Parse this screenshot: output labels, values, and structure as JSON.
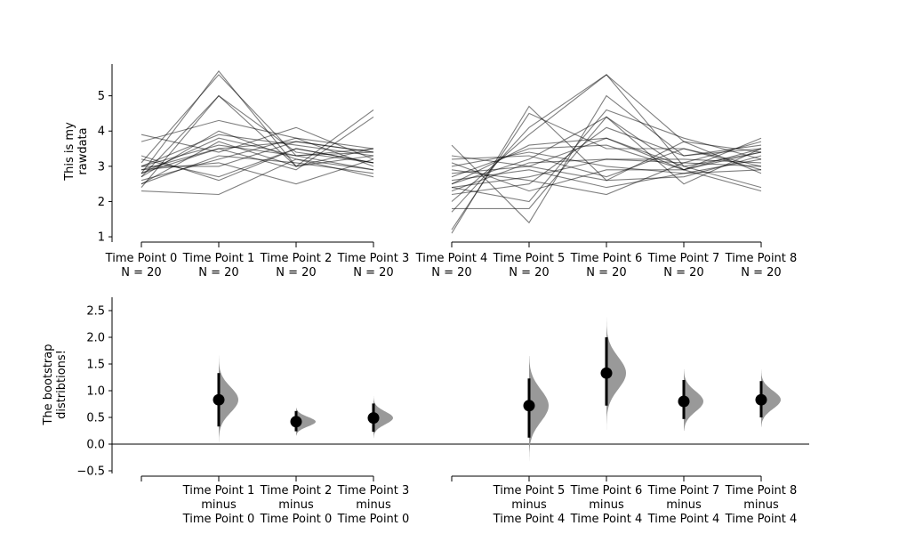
{
  "chart_data": [
    {
      "type": "line",
      "ylabel": "This is my\nrawdata",
      "ylim": [
        0.85,
        5.9
      ],
      "yticks": [
        1,
        2,
        3,
        4,
        5
      ],
      "groups": [
        {
          "x_labels": [
            "Time Point 0\nN = 20",
            "Time Point 1\nN = 20",
            "Time Point 2\nN = 20",
            "Time Point 3\nN = 20"
          ],
          "lines": [
            [
              2.8,
              5.7,
              3.0,
              3.3
            ],
            [
              3.1,
              5.6,
              3.3,
              3.4
            ],
            [
              2.7,
              5.0,
              3.0,
              3.5
            ],
            [
              2.4,
              5.0,
              3.4,
              3.1
            ],
            [
              3.7,
              4.3,
              3.8,
              3.5
            ],
            [
              3.9,
              3.4,
              4.1,
              3.2
            ],
            [
              2.5,
              3.7,
              3.0,
              4.6
            ],
            [
              2.9,
              3.5,
              2.9,
              4.4
            ],
            [
              3.0,
              3.9,
              3.6,
              3.3
            ],
            [
              2.8,
              3.5,
              3.7,
              3.4
            ],
            [
              3.0,
              3.6,
              3.3,
              2.9
            ],
            [
              2.6,
              3.2,
              3.8,
              3.0
            ],
            [
              2.9,
              3.1,
              2.5,
              3.2
            ],
            [
              3.2,
              2.7,
              3.5,
              3.1
            ],
            [
              2.3,
              2.2,
              3.2,
              2.7
            ],
            [
              3.3,
              2.6,
              3.5,
              3.1
            ],
            [
              2.8,
              3.8,
              3.3,
              3.5
            ],
            [
              2.7,
              4.0,
              3.2,
              2.9
            ],
            [
              2.5,
              3.3,
              3.1,
              2.8
            ],
            [
              3.0,
              3.0,
              3.7,
              3.4
            ]
          ]
        },
        {
          "x_labels": [
            "Time Point 4\nN = 20",
            "Time Point 5\nN = 20",
            "Time Point 6\nN = 20",
            "Time Point 7\nN = 20",
            "Time Point 8\nN = 20"
          ],
          "lines": [
            [
              1.1,
              4.7,
              2.6,
              3.7,
              3.4
            ],
            [
              1.2,
              4.5,
              3.5,
              3.5,
              3.0
            ],
            [
              1.7,
              4.1,
              5.6,
              3.0,
              3.4
            ],
            [
              2.0,
              3.9,
              5.6,
              3.7,
              2.8
            ],
            [
              3.6,
              1.4,
              5.0,
              3.3,
              3.6
            ],
            [
              2.4,
              2.0,
              4.6,
              3.8,
              3.2
            ],
            [
              1.8,
              1.8,
              4.4,
              2.9,
              3.8
            ],
            [
              2.5,
              3.2,
              4.4,
              2.5,
              3.5
            ],
            [
              3.3,
              3.0,
              3.8,
              3.0,
              2.4
            ],
            [
              2.7,
              3.5,
              3.6,
              2.9,
              2.3
            ],
            [
              2.3,
              3.1,
              3.2,
              3.1,
              3.7
            ],
            [
              3.1,
              2.3,
              2.9,
              2.9,
              3.5
            ],
            [
              2.9,
              2.6,
              2.2,
              3.1,
              3.0
            ],
            [
              3.2,
              3.3,
              2.7,
              3.5,
              2.9
            ],
            [
              2.6,
              2.9,
              2.4,
              2.8,
              3.2
            ],
            [
              2.5,
              3.6,
              3.8,
              2.9,
              3.4
            ],
            [
              2.4,
              2.7,
              3.2,
              3.2,
              3.1
            ],
            [
              2.8,
              3.0,
              2.6,
              2.7,
              3.3
            ],
            [
              3.0,
              3.4,
              3.0,
              2.8,
              2.9
            ],
            [
              2.2,
              2.5,
              4.1,
              3.3,
              3.5
            ]
          ]
        }
      ]
    },
    {
      "type": "violin-half",
      "ylabel": "The bootstrap\ndistribtions!",
      "ylim": [
        -0.55,
        2.75
      ],
      "yticks": [
        -0.5,
        0.0,
        0.5,
        1.0,
        1.5,
        2.0,
        2.5
      ],
      "ytick_labels": [
        "−0.5",
        "0.0",
        "0.5",
        "1.0",
        "1.5",
        "2.0",
        "2.5"
      ],
      "groups": [
        {
          "x_labels": [
            "",
            "Time Point 1\nminus\nTime Point 0",
            "Time Point 2\nminus\nTime Point 0",
            "Time Point 3\nminus\nTime Point 0"
          ],
          "estimates": [
            null,
            {
              "mean": 0.83,
              "ci": [
                0.33,
                1.33
              ],
              "range": [
                0.0,
                1.67
              ],
              "sd": 0.24
            },
            {
              "mean": 0.42,
              "ci": [
                0.24,
                0.62
              ],
              "range": [
                0.16,
                0.68
              ],
              "sd": 0.09
            },
            {
              "mean": 0.49,
              "ci": [
                0.23,
                0.76
              ],
              "range": [
                0.11,
                0.9
              ],
              "sd": 0.12
            }
          ]
        },
        {
          "x_labels": [
            "",
            "Time Point 5\nminus\nTime Point 4",
            "Time Point 6\nminus\nTime Point 4",
            "Time Point 7\nminus\nTime Point 4",
            "Time Point 8\nminus\nTime Point 4"
          ],
          "estimates": [
            null,
            {
              "mean": 0.72,
              "ci": [
                0.12,
                1.23
              ],
              "range": [
                -0.55,
                1.65
              ],
              "sd": 0.3
            },
            {
              "mean": 1.33,
              "ci": [
                0.72,
                2.0
              ],
              "range": [
                0.25,
                2.5
              ],
              "sd": 0.3
            },
            {
              "mean": 0.8,
              "ci": [
                0.47,
                1.2
              ],
              "range": [
                0.25,
                1.4
              ],
              "sd": 0.19
            },
            {
              "mean": 0.83,
              "ci": [
                0.5,
                1.18
              ],
              "range": [
                0.32,
                1.4
              ],
              "sd": 0.17
            }
          ]
        }
      ]
    }
  ]
}
